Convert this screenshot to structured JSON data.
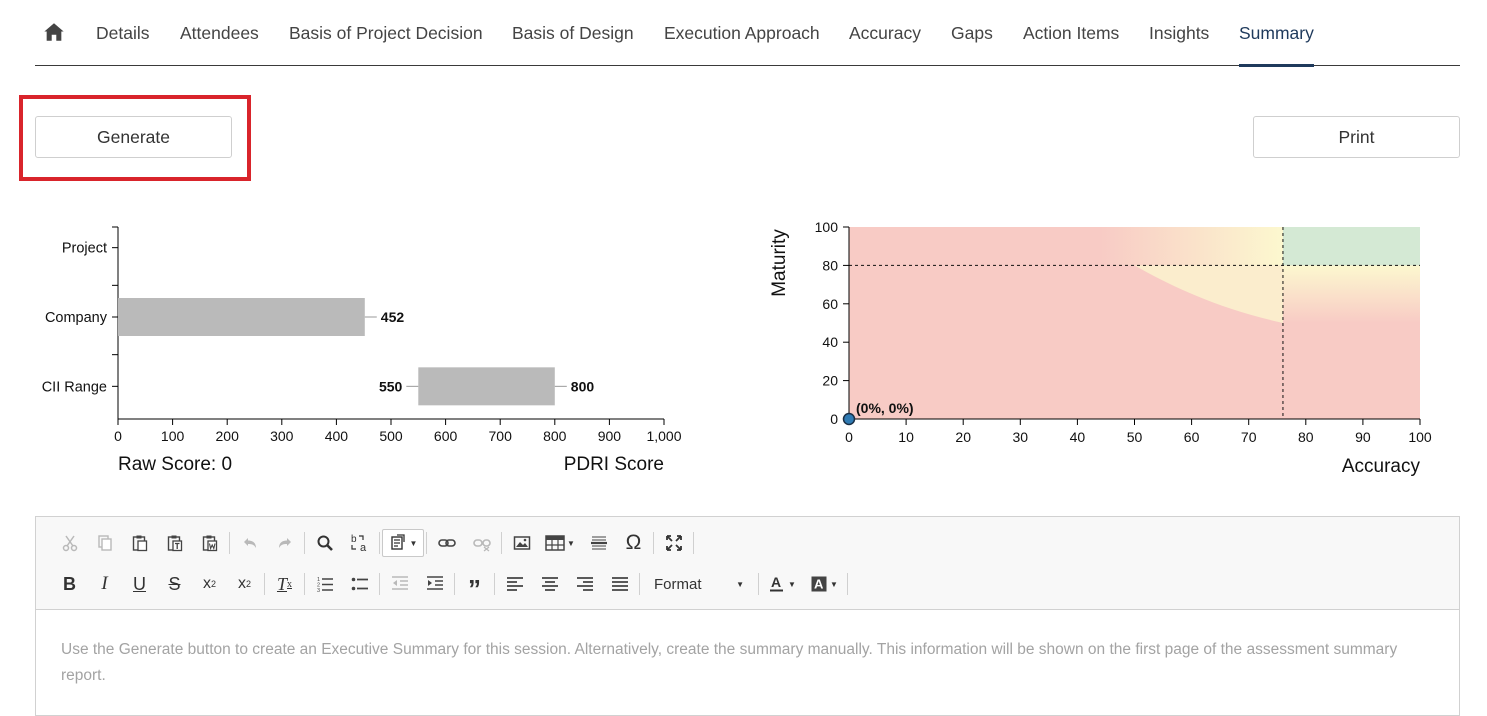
{
  "nav": {
    "home_icon": "home-icon",
    "tabs": [
      {
        "label": "Details",
        "active": false
      },
      {
        "label": "Attendees",
        "active": false
      },
      {
        "label": "Basis of Project Decision",
        "active": false
      },
      {
        "label": "Basis of Design",
        "active": false
      },
      {
        "label": "Execution Approach",
        "active": false
      },
      {
        "label": "Accuracy",
        "active": false
      },
      {
        "label": "Gaps",
        "active": false
      },
      {
        "label": "Action Items",
        "active": false
      },
      {
        "label": "Insights",
        "active": false
      },
      {
        "label": "Summary",
        "active": true
      }
    ]
  },
  "actions": {
    "generate_label": "Generate",
    "print_label": "Print"
  },
  "colors": {
    "accent": "#1f3a5c",
    "highlight": "#d9242b",
    "bar": "#bababa",
    "zone_red": "#f8cbc5",
    "zone_yellow": "#fcf8cf",
    "zone_green": "#d4e9d4"
  },
  "chart_data": [
    {
      "type": "bar",
      "orientation": "horizontal",
      "categories": [
        "Project",
        "Company",
        "CII Range"
      ],
      "values": [
        {
          "category": "Project",
          "start": null,
          "end": null
        },
        {
          "category": "Company",
          "start": 0,
          "end": 452
        },
        {
          "category": "CII Range",
          "start": 550,
          "end": 800
        }
      ],
      "data_labels": {
        "company_end": "452",
        "range_start": "550",
        "range_end": "800"
      },
      "xlim": [
        0,
        1000
      ],
      "xticks": [
        "0",
        "100",
        "200",
        "300",
        "400",
        "500",
        "600",
        "700",
        "800",
        "900",
        "1,000"
      ],
      "xlabel": "PDRI Score",
      "footer_left": "Raw Score: 0",
      "grid": false
    },
    {
      "type": "scatter",
      "xlabel": "Accuracy",
      "ylabel": "Maturity",
      "xlim": [
        0,
        100
      ],
      "ylim": [
        0,
        100
      ],
      "xticks": [
        "0",
        "10",
        "20",
        "30",
        "40",
        "50",
        "60",
        "70",
        "80",
        "90",
        "100"
      ],
      "yticks": [
        "0",
        "20",
        "40",
        "60",
        "80",
        "100"
      ],
      "points": [
        {
          "x": 0,
          "y": 0,
          "label": "(0%, 0%)"
        }
      ],
      "threshold_x": 76,
      "threshold_y": 80,
      "background_zones": "red (low), yellow (transition), green (accuracy >= 76 and maturity >= 80)",
      "grid": false
    }
  ],
  "editor": {
    "placeholder": "Use the Generate button to create an Executive Summary for this session. Alternatively, create the summary manually. This information will be shown on the first page of the assessment summary report.",
    "format_label": "Format",
    "toolbar_row1": [
      "cut-icon",
      "copy-icon",
      "paste-icon",
      "paste-text-icon",
      "paste-word-icon",
      "undo-icon",
      "redo-icon",
      "find-icon",
      "replace-icon",
      "template-icon",
      "link-icon",
      "unlink-icon",
      "image-icon",
      "table-icon",
      "horizontal-rule-icon",
      "special-char-icon",
      "maximize-icon"
    ],
    "toolbar_row2": [
      "bold-icon",
      "italic-icon",
      "underline-icon",
      "strike-icon",
      "subscript-icon",
      "superscript-icon",
      "remove-format-icon",
      "numbered-list-icon",
      "bulleted-list-icon",
      "outdent-icon",
      "indent-icon",
      "blockquote-icon",
      "align-left-icon",
      "align-center-icon",
      "align-right-icon",
      "justify-icon",
      "text-color-icon",
      "background-color-icon"
    ]
  }
}
